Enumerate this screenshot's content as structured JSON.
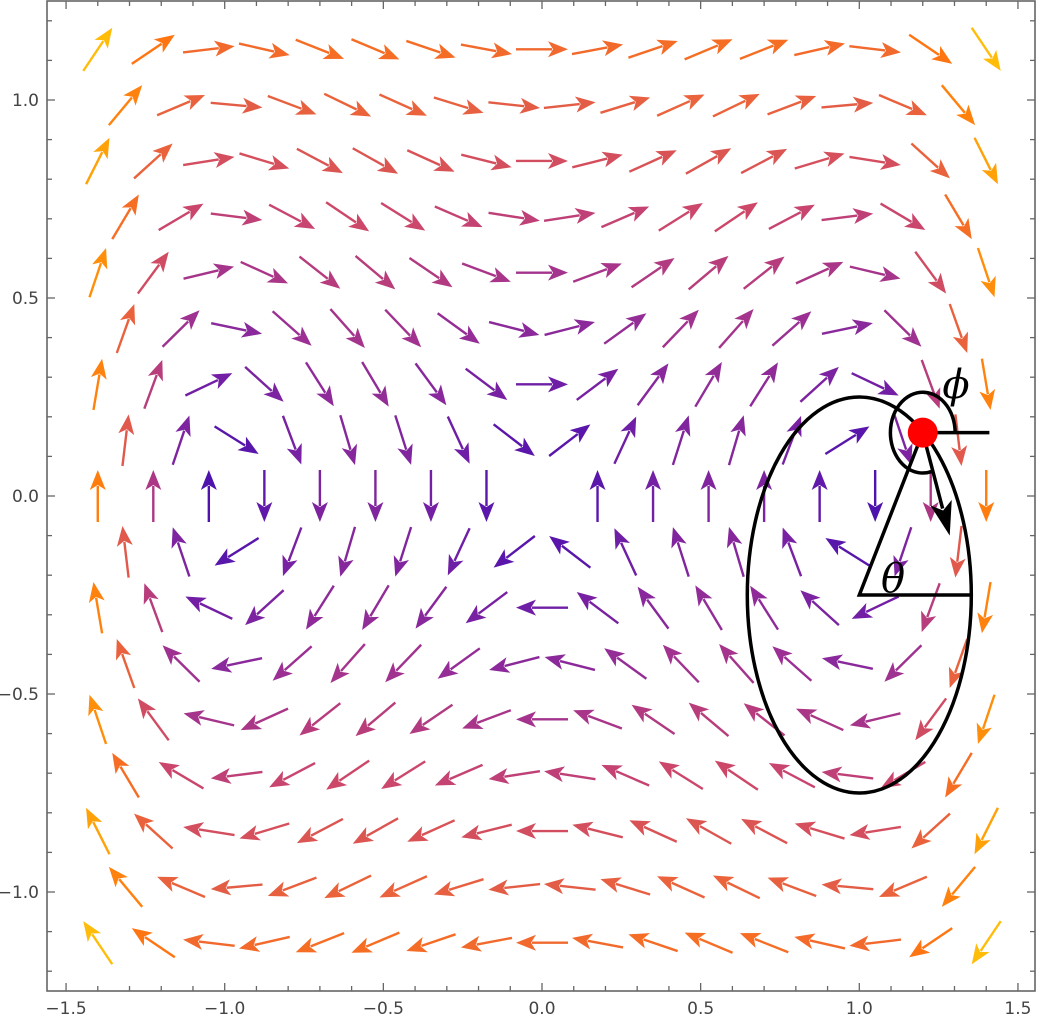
{
  "chart_data": {
    "type": "vector_field",
    "title": "",
    "xlabel": "",
    "ylabel": "",
    "field": {
      "u": "y",
      "v": "x - x^3",
      "description": "Duffing-type Hamiltonian flow with vortex centers at (-1,0) and (1,0) and a saddle at (0,0)"
    },
    "xlim": [
      -1.56,
      1.555
    ],
    "ylim": [
      -1.25,
      1.25
    ],
    "x_ticks": [
      -1.5,
      -1.0,
      -0.5,
      0.0,
      0.5,
      1.0,
      1.5
    ],
    "x_tick_labels": [
      "−1.5",
      "−1.0",
      "−0.5",
      "0.0",
      "0.5",
      "1.0",
      "1.5"
    ],
    "y_ticks": [
      1.0,
      0.5,
      0.0,
      -0.5,
      -1.0
    ],
    "y_tick_labels": [
      "1.0",
      "0.5",
      "0.0",
      "−0.5",
      "−1.0"
    ],
    "minor_tick_step_x": 0.1,
    "minor_tick_step_y": 0.1,
    "grid": false,
    "legend": null,
    "arrow_grid": {
      "dx": 0.175,
      "dy": 0.141,
      "staggered": true,
      "arrow_length": 0.17
    },
    "color_scale": {
      "by": "magnitude",
      "stops": [
        "#3c0cb0",
        "#6a1ca8",
        "#9a2f94",
        "#c9456e",
        "#e8613f",
        "#ff7512",
        "#ff9a06",
        "#ffc30a"
      ],
      "min": 0.0,
      "max": 1.8
    },
    "annotations": {
      "ellipse": {
        "cx": 1.0,
        "cy": -0.25,
        "rx": 0.353,
        "ry": 0.5,
        "color": "#000000"
      },
      "point": {
        "x": 1.2,
        "y": 0.16,
        "color": "#ff0000",
        "label": "particle"
      },
      "phi_arc": {
        "cx": 1.2,
        "cy": 0.16,
        "r": 0.102,
        "start_deg": 0,
        "end_deg": 285,
        "label": "ϕ"
      },
      "phi_reference_line": {
        "x1": 1.2,
        "y1": 0.16,
        "x2": 1.41,
        "y2": 0.16
      },
      "theta_triangle": {
        "apex": [
          1.2,
          0.16
        ],
        "base_left": [
          1.0,
          -0.25
        ],
        "base_right": [
          1.353,
          -0.25
        ],
        "label": "θ"
      },
      "direction_arrow": {
        "from": [
          1.2,
          0.16
        ],
        "to": [
          1.285,
          -0.1
        ]
      }
    }
  },
  "labels": {
    "phi": "ϕ",
    "theta": "θ"
  }
}
